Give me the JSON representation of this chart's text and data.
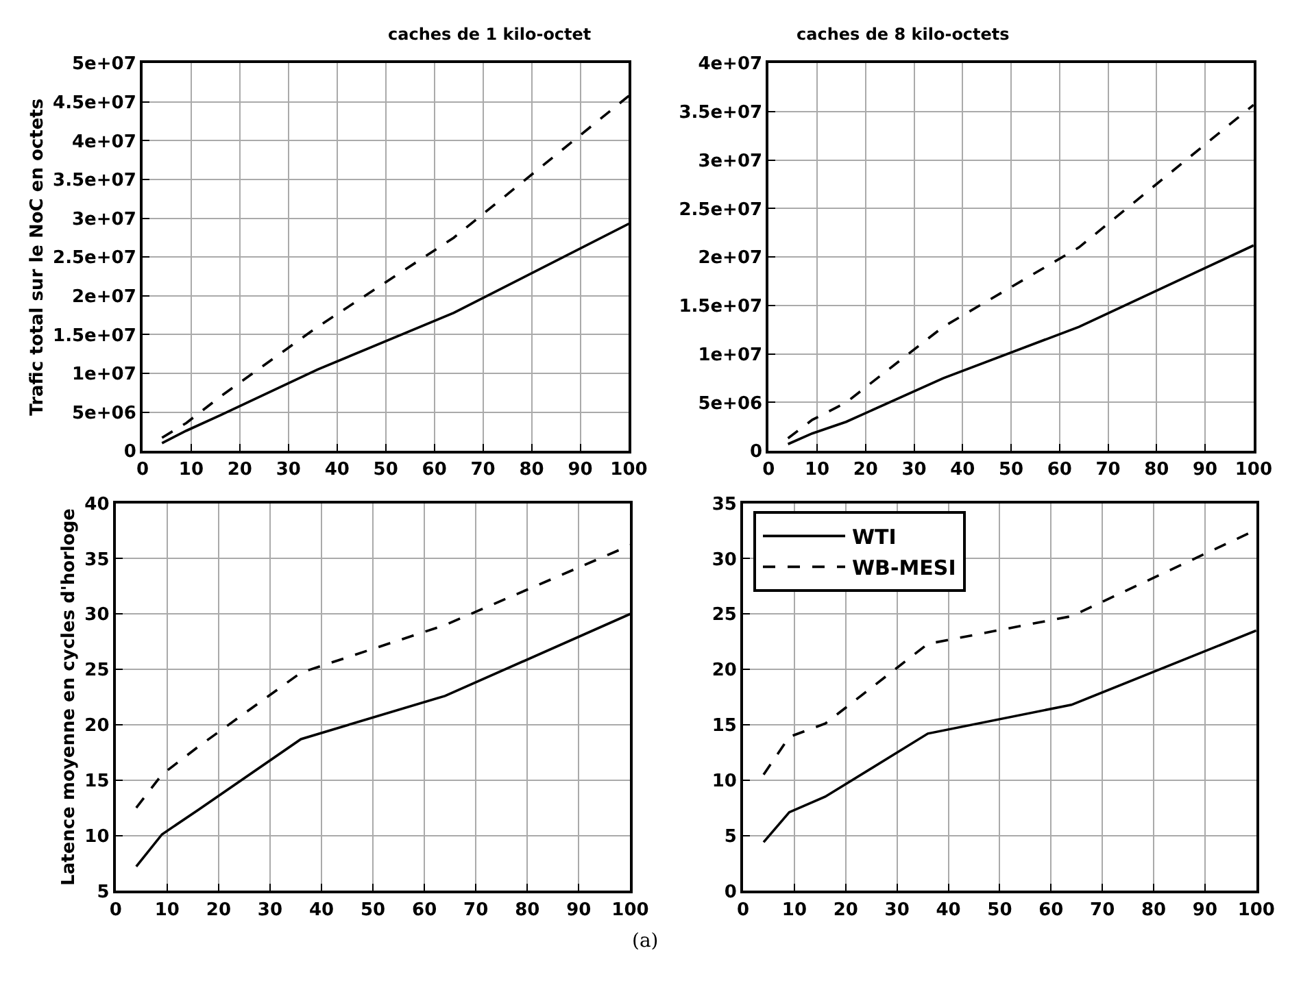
{
  "chart_data": [
    {
      "type": "line",
      "title": "caches de 1 kilo-octet",
      "ylabel": "Trafic total sur le NoC en octets",
      "x": [
        4,
        9,
        16,
        36,
        64,
        100
      ],
      "xlim": [
        0,
        100
      ],
      "xticks": [
        0,
        10,
        20,
        30,
        40,
        50,
        60,
        70,
        80,
        90,
        100
      ],
      "ylim": [
        0,
        50000000
      ],
      "yticks": [
        {
          "value": 0,
          "label": "0"
        },
        {
          "value": 5000000,
          "label": "5e+06"
        },
        {
          "value": 10000000,
          "label": "1e+07"
        },
        {
          "value": 15000000,
          "label": "1.5e+07"
        },
        {
          "value": 20000000,
          "label": "2e+07"
        },
        {
          "value": 25000000,
          "label": "2.5e+07"
        },
        {
          "value": 30000000,
          "label": "3e+07"
        },
        {
          "value": 35000000,
          "label": "3.5e+07"
        },
        {
          "value": 40000000,
          "label": "4e+07"
        },
        {
          "value": 45000000,
          "label": "4.5e+07"
        },
        {
          "value": 50000000,
          "label": "5e+07"
        }
      ],
      "grid": true,
      "legend": false,
      "marker": "none",
      "series": [
        {
          "color": "#000000",
          "line_style": "solid",
          "values": [
            1000000,
            2600000,
            4600000,
            10500000,
            17800000,
            29300000
          ]
        },
        {
          "color": "#000000",
          "line_style": "dashed",
          "values": [
            1700000,
            3600000,
            7000000,
            16000000,
            27500000,
            45800000
          ]
        }
      ]
    },
    {
      "type": "line",
      "title": "caches de 8 kilo-octets",
      "x": [
        4,
        9,
        16,
        36,
        64,
        100
      ],
      "xlim": [
        0,
        100
      ],
      "xticks": [
        0,
        10,
        20,
        30,
        40,
        50,
        60,
        70,
        80,
        90,
        100
      ],
      "ylim": [
        0,
        40000000
      ],
      "yticks": [
        {
          "value": 0,
          "label": "0"
        },
        {
          "value": 5000000,
          "label": "5e+06"
        },
        {
          "value": 10000000,
          "label": "1e+07"
        },
        {
          "value": 15000000,
          "label": "1.5e+07"
        },
        {
          "value": 20000000,
          "label": "2e+07"
        },
        {
          "value": 25000000,
          "label": "2.5e+07"
        },
        {
          "value": 30000000,
          "label": "3e+07"
        },
        {
          "value": 35000000,
          "label": "3.5e+07"
        },
        {
          "value": 40000000,
          "label": "4e+07"
        }
      ],
      "grid": true,
      "legend": false,
      "marker": "none",
      "series": [
        {
          "color": "#000000",
          "line_style": "solid",
          "values": [
            700000,
            1800000,
            3000000,
            7500000,
            12800000,
            21200000
          ]
        },
        {
          "color": "#000000",
          "line_style": "dashed",
          "values": [
            1300000,
            3200000,
            5000000,
            12800000,
            21000000,
            35700000
          ]
        }
      ]
    },
    {
      "type": "line",
      "ylabel": "Latence moyenne en cycles d'horloge",
      "x": [
        4,
        9,
        16,
        36,
        64,
        100
      ],
      "xlim": [
        0,
        100
      ],
      "xticks": [
        0,
        10,
        20,
        30,
        40,
        50,
        60,
        70,
        80,
        90,
        100
      ],
      "ylim": [
        5,
        40
      ],
      "yticks": [
        5,
        10,
        15,
        20,
        25,
        30,
        35,
        40
      ],
      "grid": true,
      "legend": false,
      "marker": "none",
      "series": [
        {
          "color": "#000000",
          "line_style": "solid",
          "values": [
            7.2,
            10.1,
            12.3,
            18.7,
            22.6,
            30.0
          ]
        },
        {
          "color": "#000000",
          "line_style": "dashed",
          "values": [
            12.5,
            15.5,
            18.0,
            24.7,
            29.0,
            36.2
          ]
        }
      ]
    },
    {
      "type": "line",
      "x": [
        4,
        9,
        16,
        36,
        64,
        100
      ],
      "xlim": [
        0,
        100
      ],
      "xticks": [
        0,
        10,
        20,
        30,
        40,
        50,
        60,
        70,
        80,
        90,
        100
      ],
      "ylim": [
        0,
        35
      ],
      "yticks": [
        0,
        5,
        10,
        15,
        20,
        25,
        30,
        35
      ],
      "grid": true,
      "legend": "top left",
      "marker": "none",
      "annotations": [
        "(a)"
      ],
      "series": [
        {
          "name": "WTI",
          "color": "#000000",
          "line_style": "solid",
          "values": [
            4.4,
            7.1,
            8.5,
            14.2,
            16.8,
            23.5
          ]
        },
        {
          "name": "WB-MESI",
          "color": "#000000",
          "line_style": "dashed",
          "values": [
            10.5,
            13.9,
            15.1,
            22.3,
            24.8,
            32.6
          ]
        }
      ]
    }
  ]
}
